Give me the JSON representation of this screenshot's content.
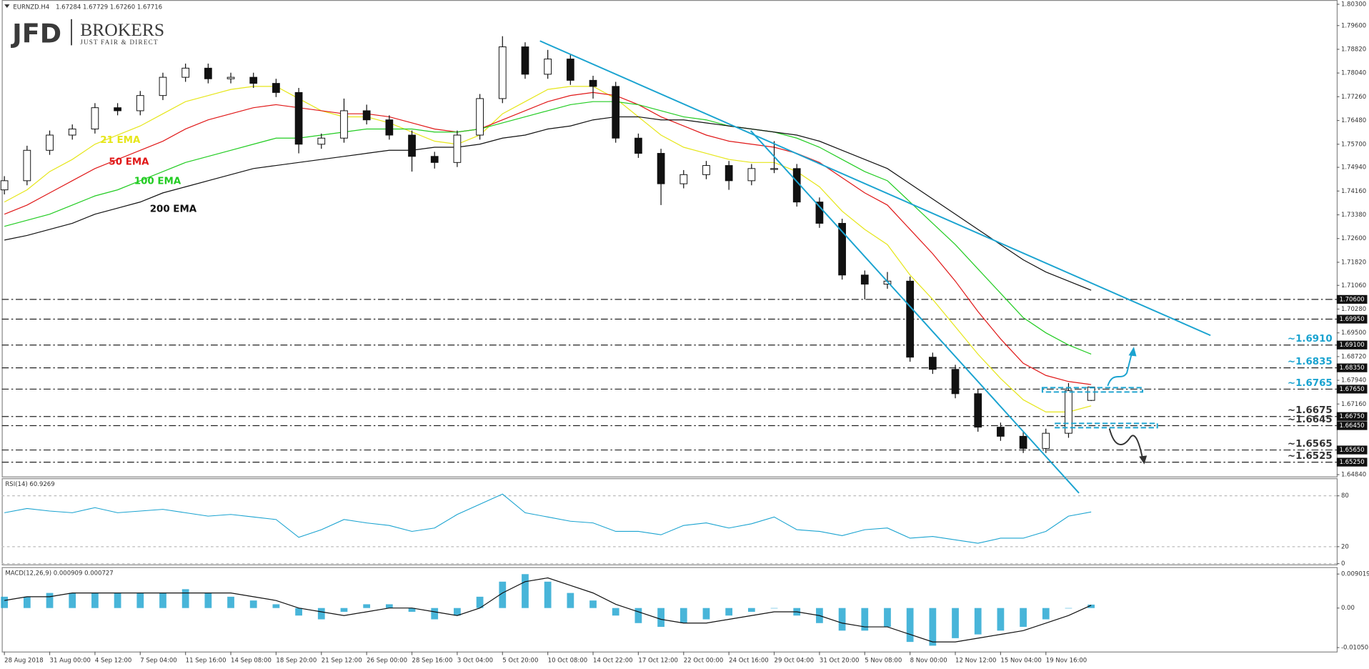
{
  "logo": {
    "brand": "JFD",
    "name": "BROKERS",
    "tagline": "JUST FAIR & DIRECT"
  },
  "chart_data": [
    {
      "type": "candlestick",
      "title": "EURNZD.H4",
      "subtitle": "1.67284 1.67729 1.67260 1.67716",
      "categories": [
        "28 Aug 2018",
        null,
        "31 Aug 00:00",
        null,
        "4 Sep 12:00",
        null,
        "7 Sep 04:00",
        null,
        "11 Sep 16:00",
        null,
        "14 Sep 08:00",
        null,
        "18 Sep 20:00",
        null,
        "21 Sep 12:00",
        null,
        "26 Sep 00:00",
        null,
        "28 Sep 16:00",
        null,
        "3 Oct 04:00",
        null,
        "5 Oct 20:00",
        null,
        "10 Oct 08:00",
        null,
        "14 Oct 22:00",
        null,
        "17 Oct 12:00",
        null,
        "22 Oct 00:00",
        null,
        "24 Oct 16:00",
        null,
        "29 Oct 04:00",
        null,
        "31 Oct 20:00",
        null,
        "5 Nov 08:00",
        null,
        "8 Nov 00:00",
        null,
        "12 Nov 12:00",
        null,
        "15 Nov 04:00",
        null,
        "19 Nov 16:00",
        null,
        null
      ],
      "ohlc": {
        "open": [
          1.742,
          1.745,
          1.755,
          1.76,
          1.762,
          1.769,
          1.768,
          1.773,
          1.779,
          1.782,
          1.7785,
          1.779,
          1.777,
          1.774,
          1.757,
          1.759,
          1.768,
          1.765,
          1.76,
          1.753,
          1.751,
          1.76,
          1.772,
          1.789,
          1.78,
          1.785,
          1.778,
          1.776,
          1.759,
          1.754,
          1.744,
          1.747,
          1.75,
          1.745,
          1.749,
          1.749,
          1.738,
          1.731,
          1.714,
          1.711,
          1.712,
          1.687,
          1.683,
          1.675,
          1.664,
          1.661,
          1.657,
          1.662,
          1.6728
        ],
        "high": [
          1.7465,
          1.7565,
          1.7615,
          1.7635,
          1.7705,
          1.7705,
          1.7745,
          1.7805,
          1.7835,
          1.7835,
          1.7805,
          1.7805,
          1.7785,
          1.7755,
          1.7605,
          1.772,
          1.77,
          1.7665,
          1.7615,
          1.7545,
          1.7615,
          1.7735,
          1.7925,
          1.7905,
          1.788,
          1.7865,
          1.7795,
          1.7775,
          1.7605,
          1.7555,
          1.7485,
          1.7515,
          1.7515,
          1.7505,
          1.758,
          1.7505,
          1.7395,
          1.7325,
          1.7155,
          1.715,
          1.7135,
          1.6885,
          1.6845,
          1.6765,
          1.6655,
          1.6625,
          1.6635,
          1.6785,
          1.6773
        ],
        "low": [
          1.7405,
          1.7435,
          1.7535,
          1.7585,
          1.7605,
          1.7665,
          1.7665,
          1.7715,
          1.7775,
          1.777,
          1.777,
          1.7755,
          1.7725,
          1.754,
          1.7555,
          1.7575,
          1.7635,
          1.7585,
          1.748,
          1.749,
          1.7495,
          1.7585,
          1.7705,
          1.7785,
          1.7785,
          1.7765,
          1.772,
          1.7575,
          1.7525,
          1.737,
          1.7425,
          1.7455,
          1.742,
          1.7435,
          1.7475,
          1.7365,
          1.7295,
          1.7125,
          1.706,
          1.7095,
          1.6855,
          1.6815,
          1.6735,
          1.6625,
          1.6595,
          1.6555,
          1.6555,
          1.6605,
          1.6726
        ],
        "close": [
          1.745,
          1.755,
          1.76,
          1.762,
          1.769,
          1.768,
          1.773,
          1.779,
          1.782,
          1.7785,
          1.779,
          1.777,
          1.774,
          1.757,
          1.759,
          1.768,
          1.765,
          1.76,
          1.753,
          1.751,
          1.76,
          1.772,
          1.789,
          1.78,
          1.785,
          1.778,
          1.776,
          1.759,
          1.754,
          1.744,
          1.747,
          1.75,
          1.745,
          1.749,
          1.749,
          1.738,
          1.731,
          1.714,
          1.711,
          1.712,
          1.687,
          1.683,
          1.675,
          1.664,
          1.661,
          1.657,
          1.662,
          1.676,
          1.6772
        ]
      },
      "series": [
        {
          "name": "21 EMA",
          "color": "#e6e61a",
          "values": [
            1.738,
            1.742,
            1.748,
            1.752,
            1.757,
            1.76,
            1.763,
            1.767,
            1.771,
            1.773,
            1.775,
            1.776,
            1.776,
            1.772,
            1.768,
            1.766,
            1.766,
            1.764,
            1.761,
            1.758,
            1.757,
            1.76,
            1.767,
            1.771,
            1.775,
            1.776,
            1.776,
            1.772,
            1.766,
            1.76,
            1.756,
            1.754,
            1.752,
            1.751,
            1.751,
            1.748,
            1.743,
            1.735,
            1.729,
            1.724,
            1.714,
            1.706,
            1.697,
            1.688,
            1.68,
            1.673,
            1.669,
            1.669,
            1.671
          ]
        },
        {
          "name": "50 EMA",
          "color": "#e01818",
          "values": [
            1.734,
            1.737,
            1.741,
            1.745,
            1.749,
            1.752,
            1.755,
            1.758,
            1.762,
            1.765,
            1.767,
            1.769,
            1.77,
            1.769,
            1.768,
            1.767,
            1.767,
            1.766,
            1.764,
            1.762,
            1.761,
            1.762,
            1.765,
            1.768,
            1.771,
            1.773,
            1.774,
            1.773,
            1.77,
            1.766,
            1.763,
            1.76,
            1.758,
            1.757,
            1.756,
            1.754,
            1.751,
            1.746,
            1.741,
            1.737,
            1.729,
            1.721,
            1.712,
            1.702,
            1.693,
            1.685,
            1.681,
            1.679,
            1.678
          ]
        },
        {
          "name": "100 EMA",
          "color": "#22cc22",
          "values": [
            1.73,
            1.732,
            1.734,
            1.737,
            1.74,
            1.742,
            1.745,
            1.748,
            1.751,
            1.753,
            1.755,
            1.757,
            1.759,
            1.759,
            1.76,
            1.761,
            1.762,
            1.762,
            1.762,
            1.761,
            1.761,
            1.762,
            1.764,
            1.766,
            1.768,
            1.77,
            1.771,
            1.771,
            1.77,
            1.768,
            1.766,
            1.765,
            1.763,
            1.762,
            1.761,
            1.759,
            1.756,
            1.752,
            1.748,
            1.745,
            1.738,
            1.731,
            1.724,
            1.716,
            1.708,
            1.7,
            1.695,
            1.691,
            1.688
          ]
        },
        {
          "name": "200 EMA",
          "color": "#111111",
          "values": [
            1.7255,
            1.727,
            1.729,
            1.731,
            1.734,
            1.736,
            1.738,
            1.741,
            1.743,
            1.745,
            1.747,
            1.749,
            1.75,
            1.751,
            1.752,
            1.753,
            1.754,
            1.755,
            1.755,
            1.756,
            1.756,
            1.757,
            1.759,
            1.76,
            1.762,
            1.763,
            1.765,
            1.766,
            1.766,
            1.765,
            1.765,
            1.764,
            1.763,
            1.762,
            1.761,
            1.76,
            1.758,
            1.755,
            1.752,
            1.749,
            1.744,
            1.739,
            1.734,
            1.729,
            1.724,
            1.719,
            1.715,
            1.712,
            1.709
          ]
        }
      ],
      "ylim": [
        1.6475,
        1.8044
      ],
      "yticks": [
        {
          "value": 1.6484,
          "label": "1.64840"
        },
        {
          "value": 1.6716,
          "label": "1.67160"
        },
        {
          "value": 1.6794,
          "label": "1.67940"
        },
        {
          "value": 1.6872,
          "label": "1.68720"
        },
        {
          "value": 1.695,
          "label": "1.69500"
        },
        {
          "value": 1.7028,
          "label": "1.70280"
        },
        {
          "value": 1.7106,
          "label": "1.71060"
        },
        {
          "value": 1.7182,
          "label": "1.71820"
        },
        {
          "value": 1.726,
          "label": "1.72600"
        },
        {
          "value": 1.7338,
          "label": "1.73380"
        },
        {
          "value": 1.7416,
          "label": "1.74160"
        },
        {
          "value": 1.7494,
          "label": "1.74940"
        },
        {
          "value": 1.757,
          "label": "1.75700"
        },
        {
          "value": 1.7648,
          "label": "1.76480"
        },
        {
          "value": 1.7726,
          "label": "1.77260"
        },
        {
          "value": 1.7804,
          "label": "1.78040"
        },
        {
          "value": 1.7882,
          "label": "1.78820"
        },
        {
          "value": 1.796,
          "label": "1.79600"
        },
        {
          "value": 1.803,
          "label": "1.80300"
        }
      ],
      "levels": [
        {
          "value": 1.706,
          "label": "1.70600"
        },
        {
          "value": 1.6995,
          "label": "1.69950"
        },
        {
          "value": 1.691,
          "label": "1.69100",
          "note": "~1.6910",
          "note_color": "#1aa3d0"
        },
        {
          "value": 1.6835,
          "label": "1.68350",
          "note": "~1.6835",
          "note_color": "#1aa3d0"
        },
        {
          "value": 1.6765,
          "label": "1.67650",
          "note": "~1.6765",
          "note_color": "#1aa3d0"
        },
        {
          "value": 1.6675,
          "label": "1.66750",
          "note": "~1.6675",
          "note_color": "#333333"
        },
        {
          "value": 1.6645,
          "label": "1.66450",
          "note": "~1.6645",
          "note_color": "#333333"
        },
        {
          "value": 1.6565,
          "label": "1.65650",
          "note": "~1.6565",
          "note_color": "#333333"
        },
        {
          "value": 1.6525,
          "label": "1.65250",
          "note": "~1.6525",
          "note_color": "#333333"
        }
      ]
    },
    {
      "type": "line",
      "title": "RSI(14) 60.9269",
      "color": "#1aa3d0",
      "values": [
        60,
        65,
        62,
        60,
        66,
        60,
        62,
        64,
        60,
        56,
        58,
        55,
        52,
        31,
        40,
        52,
        48,
        45,
        38,
        42,
        58,
        70,
        82,
        60,
        55,
        50,
        48,
        38,
        38,
        34,
        45,
        48,
        42,
        47,
        55,
        40,
        38,
        33,
        40,
        42,
        30,
        32,
        28,
        24,
        30,
        30,
        38,
        56,
        60.9269
      ],
      "ylim": [
        -1,
        100.7
      ],
      "yticks": [
        0,
        20,
        80
      ]
    },
    {
      "type": "macd",
      "title": "MACD(12,26,9) 0.000909 0.000727",
      "color": "#1aa3d0",
      "values": [
        0.003,
        0.003,
        0.004,
        0.004,
        0.004,
        0.004,
        0.004,
        0.004,
        0.005,
        0.004,
        0.003,
        0.002,
        0.001,
        -0.002,
        -0.003,
        -0.001,
        0.001,
        0.001,
        -0.001,
        -0.003,
        -0.002,
        0.003,
        0.007,
        0.009,
        0.007,
        0.004,
        0.002,
        -0.002,
        -0.004,
        -0.005,
        -0.004,
        -0.003,
        -0.002,
        -0.001,
        0,
        -0.002,
        -0.004,
        -0.006,
        -0.006,
        -0.005,
        -0.009,
        -0.01,
        -0.008,
        -0.007,
        -0.006,
        -0.005,
        -0.003,
        0,
        0.000909
      ],
      "signal": {
        "color": "#111111",
        "values": [
          0.002,
          0.003,
          0.003,
          0.004,
          0.004,
          0.004,
          0.004,
          0.004,
          0.004,
          0.004,
          0.004,
          0.003,
          0.002,
          0,
          -0.001,
          -0.002,
          -0.001,
          0,
          0,
          -0.001,
          -0.002,
          0,
          0.004,
          0.007,
          0.008,
          0.006,
          0.004,
          0.001,
          -0.001,
          -0.003,
          -0.004,
          -0.004,
          -0.003,
          -0.002,
          -0.001,
          -0.001,
          -0.002,
          -0.004,
          -0.005,
          -0.005,
          -0.007,
          -0.009,
          -0.009,
          -0.008,
          -0.007,
          -0.006,
          -0.004,
          -0.002,
          0.000727
        ]
      },
      "ylim": [
        -0.01156,
        0.01087
      ],
      "yticks": [
        -0.010505,
        {
          "value": 0,
          "label": "0.00"
        },
        0.009019
      ]
    }
  ]
}
